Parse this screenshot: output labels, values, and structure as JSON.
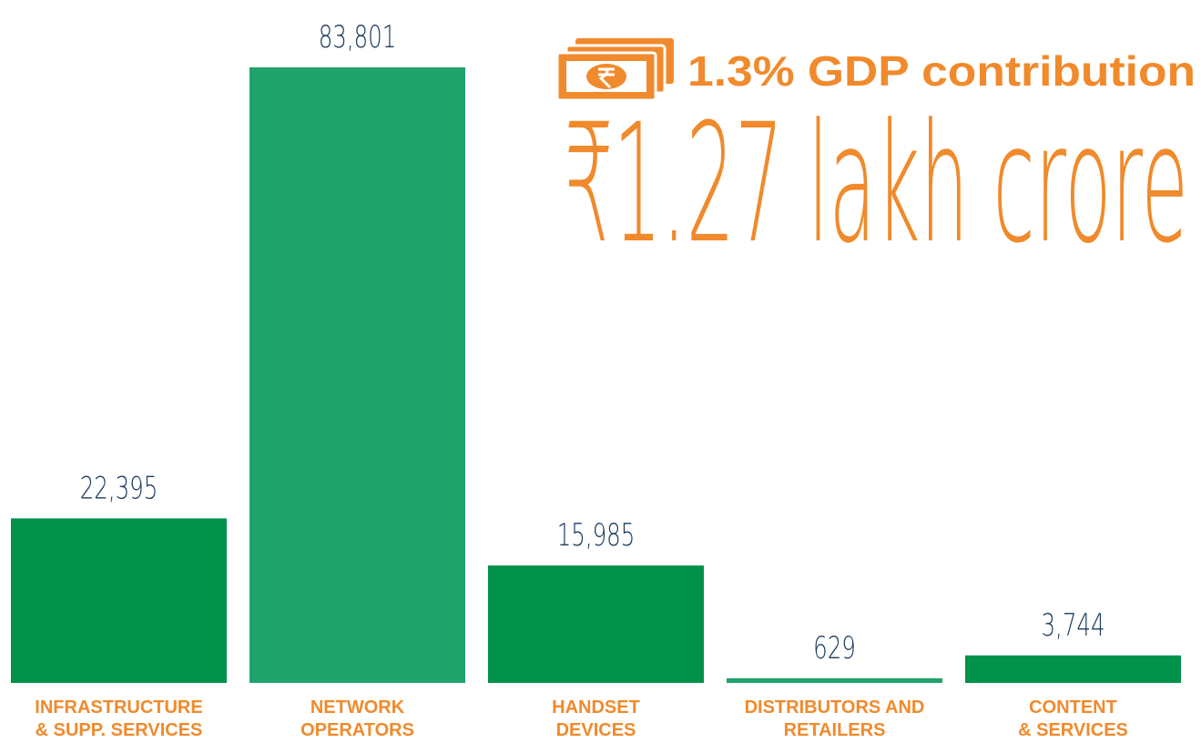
{
  "chart_data": {
    "type": "bar",
    "annotations": [
      "1.3% GDP contribution",
      "₹1.27 lakh crore"
    ],
    "categories": [
      "INFRASTRUCTURE\n& SUPP. SERVICES",
      "NETWORK\nOPERATORS",
      "HANDSET\nDEVICES",
      "DISTRIBUTORS AND\nRETAILERS",
      "CONTENT\n& SERVICES"
    ],
    "values": [
      22395,
      83801,
      15985,
      629,
      3744
    ],
    "value_labels": [
      "22,395",
      "83,801",
      "15,985",
      "629",
      "3,744"
    ],
    "colors": [
      "#00914a",
      "#1fa36a",
      "#00914a",
      "#1fa36a",
      "#00914a"
    ]
  }
}
